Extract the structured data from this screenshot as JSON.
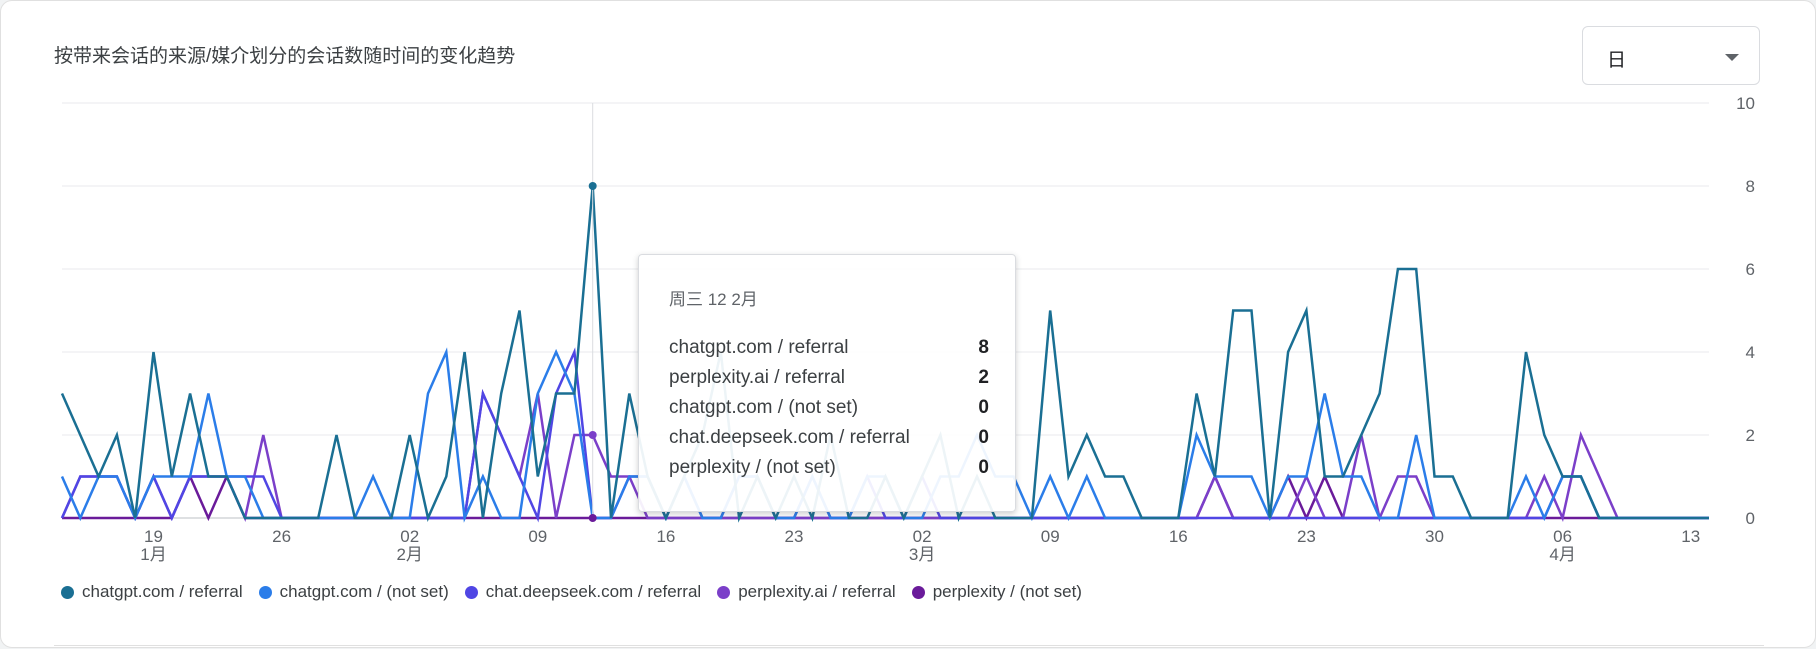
{
  "card": {
    "title": "按带来会话的来源/媒介划分的会话数随时间的变化趋势",
    "granularity_select": {
      "value": "日"
    }
  },
  "chart_data": {
    "type": "line",
    "title": "按带来会话的来源/媒介划分的会话数随时间的变化趋势",
    "ylim": [
      0,
      10
    ],
    "y_ticks": [
      "10",
      "8",
      "6",
      "4",
      "2",
      "0"
    ],
    "x_ticks": [
      {
        "day": 5,
        "label": "19",
        "sub": "1月"
      },
      {
        "day": 12,
        "label": "26",
        "sub": ""
      },
      {
        "day": 19,
        "label": "02",
        "sub": "2月"
      },
      {
        "day": 26,
        "label": "09",
        "sub": ""
      },
      {
        "day": 33,
        "label": "16",
        "sub": ""
      },
      {
        "day": 40,
        "label": "23",
        "sub": ""
      },
      {
        "day": 47,
        "label": "02",
        "sub": "3月"
      },
      {
        "day": 54,
        "label": "09",
        "sub": ""
      },
      {
        "day": 61,
        "label": "16",
        "sub": ""
      },
      {
        "day": 68,
        "label": "23",
        "sub": ""
      },
      {
        "day": 75,
        "label": "30",
        "sub": ""
      },
      {
        "day": 82,
        "label": "06",
        "sub": "4月"
      },
      {
        "day": 89,
        "label": "13",
        "sub": ""
      }
    ],
    "x_start": "2025-01-14",
    "x_end": "2025-04-13",
    "hover_index": 29,
    "grid": true,
    "legend_position": "bottom",
    "series": [
      {
        "name": "chatgpt.com / referral",
        "color": "#1a6f93",
        "values": [
          3,
          2,
          1,
          2,
          0,
          4,
          1,
          3,
          1,
          1,
          0,
          0,
          0,
          0,
          0,
          2,
          0,
          0,
          0,
          2,
          0,
          1,
          4,
          0,
          3,
          5,
          1,
          3,
          3,
          8,
          0,
          3,
          1,
          0,
          1,
          2,
          4,
          0,
          1,
          0,
          1,
          0,
          2,
          0,
          0,
          1,
          0,
          1,
          2,
          0,
          1,
          0,
          0,
          0,
          5,
          1,
          2,
          1,
          1,
          0,
          0,
          0,
          3,
          1,
          5,
          5,
          0,
          4,
          5,
          1,
          1,
          2,
          3,
          6,
          6,
          1,
          1,
          0,
          0,
          0,
          4,
          2,
          1,
          1,
          0,
          0,
          0,
          0,
          0,
          0,
          0
        ]
      },
      {
        "name": "chatgpt.com / (not set)",
        "color": "#2b7de9",
        "values": [
          1,
          0,
          1,
          1,
          0,
          1,
          1,
          1,
          3,
          1,
          1,
          0,
          0,
          0,
          0,
          0,
          0,
          1,
          0,
          0,
          3,
          4,
          0,
          1,
          0,
          0,
          3,
          4,
          3,
          0,
          0,
          1,
          1,
          0,
          1,
          0,
          0,
          1,
          1,
          0,
          0,
          1,
          0,
          0,
          1,
          1,
          0,
          0,
          1,
          1,
          2,
          1,
          1,
          0,
          1,
          0,
          1,
          0,
          0,
          0,
          0,
          0,
          2,
          1,
          1,
          1,
          0,
          1,
          1,
          3,
          1,
          1,
          0,
          0,
          2,
          0,
          0,
          0,
          0,
          0,
          1,
          0,
          1,
          1,
          0,
          0,
          0,
          0,
          0,
          0,
          0
        ]
      },
      {
        "name": "chat.deepseek.com / referral",
        "color": "#5046e4",
        "values": [
          0,
          1,
          1,
          1,
          0,
          1,
          0,
          1,
          1,
          1,
          1,
          1,
          0,
          0,
          0,
          0,
          0,
          0,
          0,
          0,
          0,
          0,
          0,
          3,
          2,
          1,
          0,
          3,
          4,
          0,
          0,
          1,
          1,
          0,
          1,
          0,
          0,
          1,
          1,
          0,
          0,
          1,
          0,
          0,
          1,
          0,
          0,
          1,
          0,
          0,
          0,
          0,
          0,
          0,
          0,
          0,
          0,
          0,
          0,
          0,
          0,
          0,
          0,
          0,
          0,
          0,
          0,
          0,
          0,
          0,
          0,
          0,
          0,
          0,
          0,
          0,
          0,
          0,
          0,
          0,
          0,
          0,
          1,
          1,
          0,
          0,
          0,
          0,
          0,
          0,
          0
        ]
      },
      {
        "name": "perplexity.ai / referral",
        "color": "#7b3fc9",
        "values": [
          0,
          1,
          1,
          1,
          0,
          1,
          0,
          1,
          1,
          1,
          0,
          2,
          0,
          0,
          0,
          0,
          0,
          0,
          0,
          0,
          0,
          0,
          0,
          3,
          2,
          1,
          3,
          0,
          2,
          2,
          1,
          1,
          0,
          0,
          0,
          0,
          0,
          0,
          0,
          0,
          0,
          0,
          0,
          0,
          0,
          0,
          0,
          0,
          0,
          0,
          0,
          0,
          0,
          0,
          0,
          0,
          0,
          0,
          0,
          0,
          0,
          0,
          0,
          1,
          0,
          0,
          0,
          0,
          1,
          0,
          0,
          2,
          0,
          1,
          1,
          0,
          0,
          0,
          0,
          0,
          0,
          1,
          0,
          2,
          1,
          0,
          0,
          0,
          0,
          0,
          0
        ]
      },
      {
        "name": "perplexity / (not set)",
        "color": "#6a1b9a",
        "values": [
          0,
          0,
          0,
          0,
          0,
          0,
          0,
          1,
          0,
          1,
          0,
          0,
          0,
          0,
          0,
          0,
          0,
          0,
          0,
          0,
          0,
          0,
          0,
          0,
          0,
          0,
          0,
          0,
          0,
          0,
          0,
          0,
          0,
          0,
          0,
          0,
          0,
          0,
          0,
          0,
          0,
          0,
          0,
          0,
          0,
          0,
          0,
          0,
          0,
          0,
          0,
          0,
          0,
          0,
          0,
          0,
          0,
          0,
          0,
          0,
          0,
          0,
          0,
          1,
          0,
          0,
          0,
          1,
          0,
          1,
          0,
          0,
          0,
          0,
          0,
          0,
          0,
          0,
          0,
          0,
          0,
          0,
          0,
          0,
          0,
          0,
          0,
          0,
          0,
          0,
          0
        ]
      }
    ]
  },
  "tooltip": {
    "date": "周三 12 2月",
    "rows": [
      {
        "label": "chatgpt.com / referral",
        "value": "8"
      },
      {
        "label": "perplexity.ai / referral",
        "value": "2"
      },
      {
        "label": "chatgpt.com / (not set)",
        "value": "0"
      },
      {
        "label": "chat.deepseek.com / referral",
        "value": "0"
      },
      {
        "label": "perplexity / (not set)",
        "value": "0"
      }
    ]
  }
}
